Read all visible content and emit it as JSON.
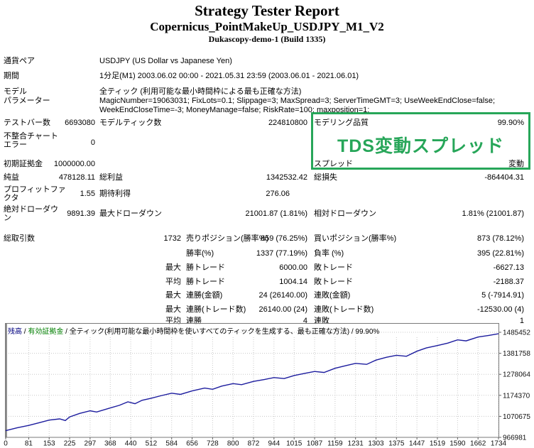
{
  "report": {
    "title": "Strategy Tester Report",
    "ea_name": "Copernicus_PointMakeUp_USDJPY_M1_V2",
    "server": "Dukascopy-demo-1 (Build 1335)"
  },
  "info": {
    "symbol": {
      "label": "通貨ペア",
      "value": "USDJPY (US Dollar vs Japanese Yen)"
    },
    "period": {
      "label": "期間",
      "value": "1分足(M1) 2003.06.02 00:00 - 2021.05.31 23:59 (2003.06.01 - 2021.06.01)"
    },
    "model": {
      "label": "モデル",
      "value": "全ティック (利用可能な最小時間枠による最も正確な方法)"
    },
    "parameters": {
      "label": "パラメーター",
      "value": "MagicNumber=19063031; FixLots=0.1; Slippage=3; MaxSpread=3; ServerTimeGMT=3; UseWeekEndClose=false; WeekEndCloseTime=-3; MoneyManage=false; RiskRate=100; maxposition=1;"
    }
  },
  "stats": {
    "bars": {
      "label": "テストバー数",
      "value": "6693080"
    },
    "ticks": {
      "label": "モデルティック数",
      "value": "224810800"
    },
    "quality": {
      "label": "モデリング品質",
      "value": "99.90%"
    },
    "mismatch": {
      "label_line1": "不整合チャート",
      "label_line2": "エラー",
      "value": "0"
    },
    "deposit": {
      "label": "初期証拠金",
      "value": "1000000.00"
    },
    "spread": {
      "label": "スプレッド",
      "value": "変動"
    },
    "net_profit": {
      "label": "純益",
      "value": "478128.11"
    },
    "gross_profit": {
      "label": "総利益",
      "value": "1342532.42"
    },
    "gross_loss": {
      "label": "総損失",
      "value": "-864404.31"
    },
    "profit_factor": {
      "label_line1": "プロフィットファ",
      "label_line2": "クタ",
      "value": "1.55"
    },
    "expected_payoff": {
      "label": "期待利得",
      "value": "276.06"
    },
    "abs_dd": {
      "label_line1": "絶対ドローダウ",
      "label_line2": "ン",
      "value": "9891.39"
    },
    "max_dd": {
      "label": "最大ドローダウン",
      "value": "21001.87 (1.81%)"
    },
    "rel_dd": {
      "label": "相対ドローダウン",
      "value": "1.81% (21001.87)"
    }
  },
  "watermark": {
    "text": "TDS変動スプレッド",
    "color": "#27a659"
  },
  "trades": {
    "rows": [
      {
        "label": "総取引数",
        "q": "1732",
        "l1": "売りポジション(勝率%)",
        "v1": "859 (76.25%)",
        "l2": "買いポジション(勝率%)",
        "v2": "873 (78.12%)"
      },
      {
        "label": "",
        "q": "",
        "l1": "勝率(%)",
        "v1": "1337 (77.19%)",
        "l2": "負率 (%)",
        "v2": "395 (22.81%)"
      },
      {
        "label": "",
        "q": "最大",
        "l1": "勝トレード",
        "v1": "6000.00",
        "l2": "敗トレード",
        "v2": "-6627.13"
      },
      {
        "label": "",
        "q": "平均",
        "l1": "勝トレード",
        "v1": "1004.14",
        "l2": "敗トレード",
        "v2": "-2188.37"
      },
      {
        "label": "",
        "q": "最大",
        "l1": "連勝(金額)",
        "v1": "24 (26140.00)",
        "l2": "連敗(金額)",
        "v2": "5 (-7914.91)"
      },
      {
        "label": "",
        "q": "最大",
        "l1": "連勝(トレード数)",
        "v1": "26140.00 (24)",
        "l2": "連敗(トレード数)",
        "v2": "-12530.00 (4)"
      },
      {
        "label": "",
        "q": "平均",
        "l1": "連勝",
        "v1": "4",
        "l2": "連敗",
        "v2": "1"
      }
    ]
  },
  "chart_legend": {
    "balance": "残高",
    "separator1": " / ",
    "equity": "有効証拠金",
    "separator2": " / ",
    "info": "全ティック(利用可能な最小時間枠を使いすべてのティックを生成する、最も正確な方法) / 99.90%"
  },
  "chart_data": {
    "type": "line",
    "legend": [
      "残高",
      "有効証拠金"
    ],
    "xlabel": "",
    "ylabel": "",
    "xlim": [
      0,
      1734
    ],
    "ylim": [
      966981,
      1485452
    ],
    "x_ticks": [
      0,
      81,
      153,
      225,
      297,
      368,
      440,
      512,
      584,
      656,
      728,
      800,
      872,
      944,
      1015,
      1087,
      1159,
      1231,
      1303,
      1375,
      1447,
      1519,
      1590,
      1662,
      1734
    ],
    "y_ticks": [
      966981,
      1070675,
      1174370,
      1278064,
      1381758,
      1485452
    ],
    "grid": true,
    "line_color": "#1c1c9e",
    "grid_color": "#c8c8c8",
    "axis_color": "#7a7a7a",
    "series": [
      {
        "name": "残高",
        "points": [
          [
            0,
            1000000
          ],
          [
            40,
            1014000
          ],
          [
            81,
            1026000
          ],
          [
            120,
            1040000
          ],
          [
            153,
            1052000
          ],
          [
            190,
            1058000
          ],
          [
            210,
            1050000
          ],
          [
            225,
            1068000
          ],
          [
            260,
            1085000
          ],
          [
            297,
            1098000
          ],
          [
            320,
            1092000
          ],
          [
            368,
            1112000
          ],
          [
            400,
            1125000
          ],
          [
            430,
            1142000
          ],
          [
            455,
            1133000
          ],
          [
            480,
            1150000
          ],
          [
            512,
            1160000
          ],
          [
            545,
            1172000
          ],
          [
            584,
            1185000
          ],
          [
            615,
            1179000
          ],
          [
            656,
            1196000
          ],
          [
            700,
            1210000
          ],
          [
            728,
            1204000
          ],
          [
            760,
            1220000
          ],
          [
            800,
            1232000
          ],
          [
            830,
            1227000
          ],
          [
            872,
            1243000
          ],
          [
            910,
            1252000
          ],
          [
            944,
            1262000
          ],
          [
            980,
            1257000
          ],
          [
            1015,
            1272000
          ],
          [
            1050,
            1282000
          ],
          [
            1087,
            1292000
          ],
          [
            1120,
            1287000
          ],
          [
            1159,
            1308000
          ],
          [
            1200,
            1322000
          ],
          [
            1231,
            1332000
          ],
          [
            1270,
            1327000
          ],
          [
            1303,
            1348000
          ],
          [
            1340,
            1362000
          ],
          [
            1375,
            1372000
          ],
          [
            1410,
            1367000
          ],
          [
            1447,
            1392000
          ],
          [
            1480,
            1408000
          ],
          [
            1519,
            1420000
          ],
          [
            1555,
            1432000
          ],
          [
            1590,
            1448000
          ],
          [
            1620,
            1443000
          ],
          [
            1662,
            1462000
          ],
          [
            1700,
            1470000
          ],
          [
            1734,
            1478128
          ]
        ]
      }
    ]
  }
}
